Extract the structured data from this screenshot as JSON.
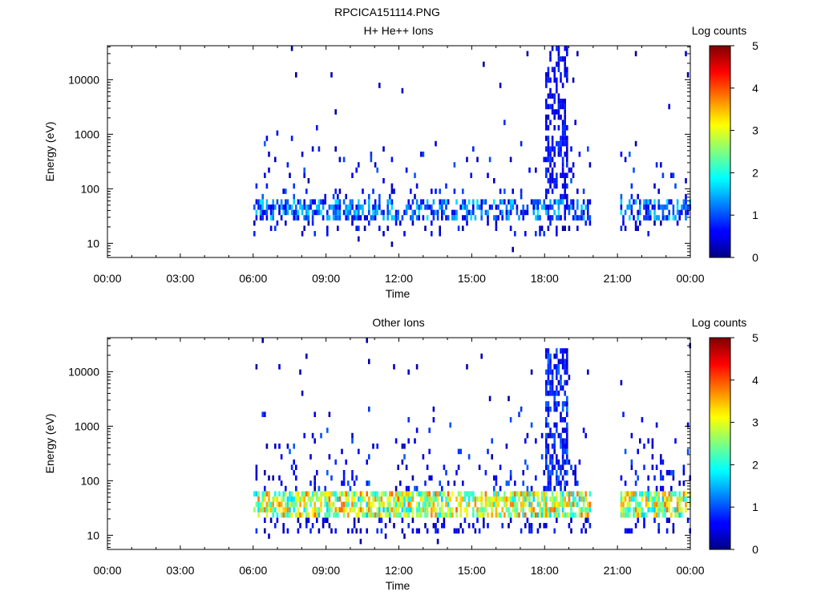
{
  "figure_title": "RPCICA151114.PNG",
  "chart_data": [
    {
      "type": "heatmap",
      "title": "H+ He++ Ions",
      "xlabel": "Time",
      "ylabel": "Energy (eV)",
      "y_scale": "log",
      "xlim": [
        0,
        24
      ],
      "ylim": [
        5.5,
        42000
      ],
      "x_ticks": [
        0,
        3,
        6,
        9,
        12,
        15,
        18,
        21,
        24
      ],
      "x_tick_labels": [
        "00:00",
        "03:00",
        "06:00",
        "09:00",
        "12:00",
        "15:00",
        "18:00",
        "21:00",
        "00:00"
      ],
      "y_ticks": [
        10,
        100,
        1000,
        10000
      ],
      "y_tick_labels": [
        "10",
        "100",
        "1000",
        "10000"
      ],
      "colorbar": {
        "label": "Log counts",
        "min": 0,
        "max": 5,
        "ticks": [
          "0",
          "1",
          "2",
          "3",
          "4",
          "5"
        ]
      },
      "data_gaps_hours": [
        [
          0,
          6.0
        ],
        [
          19.9,
          21.05
        ]
      ],
      "main_band": {
        "x_range": [
          6.0,
          24
        ],
        "energy_range_eV": [
          25,
          58
        ],
        "level_range": [
          0.4,
          1.8
        ]
      },
      "burst": {
        "x_range": [
          18.0,
          18.95
        ],
        "energy_range_eV": [
          40,
          40000
        ],
        "level_range": [
          0.3,
          0.9
        ]
      },
      "density": 0.32
    },
    {
      "type": "heatmap",
      "title": "Other Ions",
      "xlabel": "Time",
      "ylabel": "Energy (eV)",
      "y_scale": "log",
      "xlim": [
        0,
        24
      ],
      "ylim": [
        5.5,
        42000
      ],
      "x_ticks": [
        0,
        3,
        6,
        9,
        12,
        15,
        18,
        21,
        24
      ],
      "x_tick_labels": [
        "00:00",
        "03:00",
        "06:00",
        "09:00",
        "12:00",
        "15:00",
        "18:00",
        "21:00",
        "00:00"
      ],
      "y_ticks": [
        10,
        100,
        1000,
        10000
      ],
      "y_tick_labels": [
        "10",
        "100",
        "1000",
        "10000"
      ],
      "colorbar": {
        "label": "Log counts",
        "min": 0,
        "max": 5,
        "ticks": [
          "0",
          "1",
          "2",
          "3",
          "4",
          "5"
        ]
      },
      "data_gaps_hours": [
        [
          0,
          6.0
        ],
        [
          19.9,
          21.05
        ]
      ],
      "main_band": {
        "x_range": [
          6.0,
          24
        ],
        "energy_range_eV": [
          22,
          60
        ],
        "level_range": [
          1.6,
          3.9
        ]
      },
      "burst": {
        "x_range": [
          18.0,
          18.95
        ],
        "energy_range_eV": [
          40,
          30000
        ],
        "level_range": [
          0.3,
          1.2
        ]
      },
      "density": 0.6
    }
  ]
}
